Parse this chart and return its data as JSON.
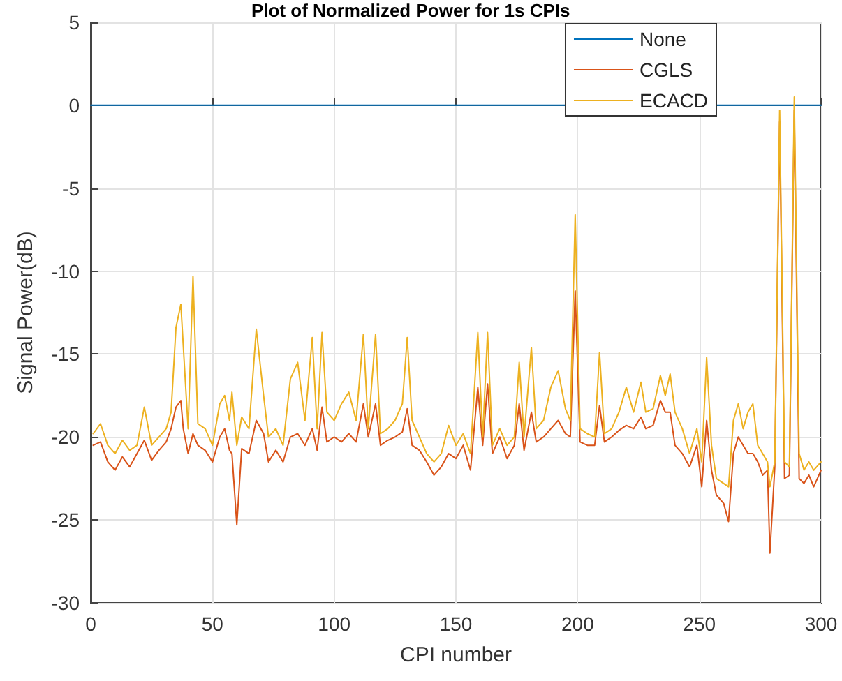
{
  "chart_data": {
    "type": "line",
    "title": "Plot of Normalized Power for 1s CPIs",
    "xlabel": "CPI number",
    "ylabel": "Signal Power(dB)",
    "x": [
      1,
      4,
      7,
      10,
      13,
      16,
      19,
      22,
      25,
      28,
      31,
      33,
      35,
      37,
      38,
      40,
      42,
      44,
      47,
      50,
      53,
      55,
      57,
      58,
      60,
      62,
      65,
      68,
      71,
      73,
      76,
      79,
      82,
      85,
      88,
      91,
      93,
      95,
      97,
      100,
      103,
      106,
      109,
      112,
      114,
      117,
      119,
      122,
      125,
      128,
      130,
      132,
      135,
      138,
      141,
      144,
      147,
      150,
      153,
      156,
      159,
      161,
      163,
      165,
      168,
      171,
      174,
      176,
      178,
      181,
      183,
      186,
      189,
      192,
      195,
      197,
      199,
      201,
      204,
      207,
      209,
      211,
      214,
      217,
      220,
      223,
      226,
      228,
      231,
      234,
      236,
      238,
      240,
      243,
      246,
      249,
      251,
      253,
      255,
      257,
      260,
      262,
      264,
      266,
      268,
      270,
      272,
      274,
      276,
      278,
      279,
      281,
      283,
      285,
      287,
      289,
      291,
      293,
      295,
      297,
      300
    ],
    "series": [
      {
        "name": "None",
        "color": "#0072bd",
        "x": [
          0,
          300
        ],
        "values": [
          0,
          0
        ]
      },
      {
        "name": "CGLS",
        "color": "#d95319",
        "values": [
          -20.5,
          -20.3,
          -21.5,
          -22.0,
          -21.2,
          -21.8,
          -21.0,
          -20.2,
          -21.4,
          -20.8,
          -20.3,
          -19.5,
          -18.2,
          -17.8,
          -19.5,
          -21.0,
          -19.8,
          -20.5,
          -20.8,
          -21.5,
          -20.0,
          -19.5,
          -20.8,
          -21.0,
          -25.3,
          -20.7,
          -21.0,
          -19.0,
          -19.8,
          -21.5,
          -20.8,
          -21.5,
          -20.0,
          -19.8,
          -20.5,
          -19.5,
          -20.8,
          -18.2,
          -20.3,
          -20.0,
          -20.3,
          -19.8,
          -20.3,
          -18.0,
          -20.0,
          -18.0,
          -20.5,
          -20.2,
          -20.0,
          -19.7,
          -18.3,
          -20.5,
          -20.8,
          -21.5,
          -22.3,
          -21.8,
          -21.0,
          -21.3,
          -20.5,
          -22.0,
          -17.0,
          -20.5,
          -16.8,
          -21.0,
          -20.0,
          -21.3,
          -20.5,
          -18.0,
          -20.8,
          -18.5,
          -20.3,
          -20.0,
          -19.5,
          -19.0,
          -19.8,
          -20.0,
          -11.2,
          -20.3,
          -20.5,
          -20.5,
          -18.1,
          -20.3,
          -20.0,
          -19.6,
          -19.3,
          -19.5,
          -18.8,
          -19.5,
          -19.3,
          -17.8,
          -18.5,
          -18.5,
          -20.5,
          -21.0,
          -21.8,
          -20.5,
          -23.0,
          -19.0,
          -22.0,
          -23.5,
          -24.0,
          -25.1,
          -21.0,
          -20.0,
          -20.5,
          -21.0,
          -21.0,
          -21.5,
          -22.3,
          -22.0,
          -27.0,
          -21.8,
          -1.0,
          -22.5,
          -22.3,
          -0.3,
          -22.5,
          -22.8,
          -22.3,
          -23.0,
          -22.0
        ]
      },
      {
        "name": "ECACD",
        "color": "#edb120",
        "values": [
          -19.8,
          -19.2,
          -20.5,
          -21.0,
          -20.2,
          -20.8,
          -20.5,
          -18.2,
          -20.5,
          -20.0,
          -19.5,
          -18.5,
          -13.4,
          -12.0,
          -14.5,
          -19.5,
          -10.3,
          -19.2,
          -19.5,
          -20.5,
          -18.0,
          -17.5,
          -19.0,
          -17.3,
          -20.5,
          -18.8,
          -19.5,
          -13.5,
          -17.5,
          -20.0,
          -19.5,
          -20.5,
          -16.5,
          -15.5,
          -19.0,
          -14.0,
          -19.5,
          -13.7,
          -18.5,
          -19.0,
          -18.0,
          -17.3,
          -19.0,
          -13.8,
          -19.5,
          -13.8,
          -19.8,
          -19.5,
          -19.0,
          -18.0,
          -14.0,
          -19.0,
          -20.0,
          -21.0,
          -21.5,
          -21.0,
          -19.3,
          -20.5,
          -19.8,
          -21.0,
          -13.7,
          -20.0,
          -13.7,
          -20.5,
          -19.5,
          -20.5,
          -20.0,
          -15.5,
          -20.0,
          -14.6,
          -19.5,
          -19.0,
          -17.0,
          -16.0,
          -18.3,
          -19.0,
          -6.6,
          -19.5,
          -19.8,
          -20.0,
          -14.9,
          -19.8,
          -19.5,
          -18.5,
          -17.0,
          -18.5,
          -16.7,
          -18.5,
          -18.3,
          -16.3,
          -17.5,
          -16.2,
          -18.5,
          -19.5,
          -21.0,
          -19.5,
          -21.5,
          -15.2,
          -20.5,
          -22.5,
          -22.8,
          -23.0,
          -19.0,
          -18.0,
          -19.5,
          -18.5,
          -18.0,
          -20.5,
          -21.0,
          -21.5,
          -23.0,
          -21.5,
          -0.3,
          -21.5,
          -21.8,
          0.5,
          -21.0,
          -22.0,
          -21.5,
          -22.0,
          -21.5
        ]
      }
    ],
    "xlim": [
      0,
      300
    ],
    "xticks": [
      0,
      50,
      100,
      150,
      200,
      250,
      300
    ],
    "ylim": [
      -30,
      5
    ],
    "yticks": [
      -30,
      -25,
      -20,
      -15,
      -10,
      -5,
      0,
      5
    ],
    "grid": true,
    "legend": "top right",
    "marker": "none",
    "line_style": "solid"
  }
}
